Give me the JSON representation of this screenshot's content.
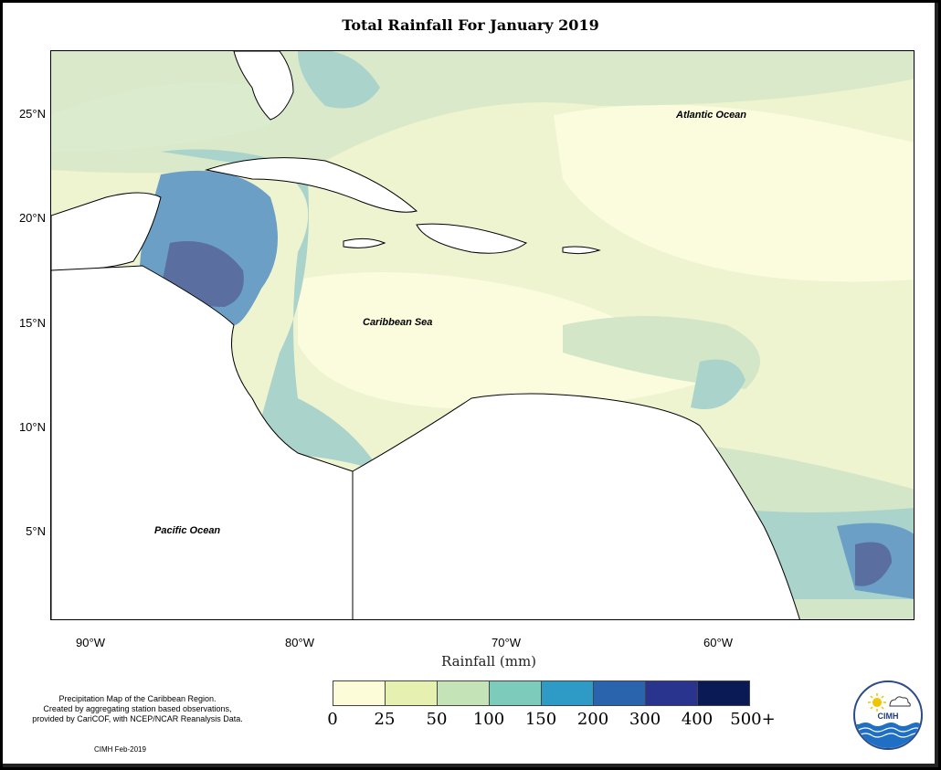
{
  "title": "Total Rainfall For January 2019",
  "axes": {
    "lat_labels": [
      "25°N",
      "20°N",
      "15°N",
      "10°N",
      "5°N"
    ],
    "lon_labels": [
      "90°W",
      "80°W",
      "70°W",
      "60°W"
    ],
    "xlabel": "Rainfall (mm)"
  },
  "ocean_labels": {
    "atlantic": "Atlantic Ocean",
    "caribbean": "Caribbean Sea",
    "pacific": "Pacific Ocean"
  },
  "legend": {
    "breaks": [
      "0",
      "25",
      "50",
      "100",
      "150",
      "200",
      "300",
      "400",
      "500+"
    ],
    "colors": [
      "#fcfdd8",
      "#e6f0b0",
      "#c4e3b7",
      "#7dcbbb",
      "#2e9ac6",
      "#2a64ad",
      "#29348e",
      "#0a1a55"
    ]
  },
  "note": {
    "line1": "Precipitation Map of the Caribbean Region.",
    "line2": "Created by aggregating station based observations,",
    "line3": "provided by CariCOF, with NCEP/NCAR Reanalysis Data."
  },
  "credit": "CIMH Feb-2019",
  "logo": {
    "text": "CIMH",
    "icons": [
      "sun-icon",
      "cloud-icon",
      "waves-icon"
    ]
  },
  "map_colors": {
    "background": "#eef3d0",
    "light": "#fbfcde",
    "green": "#d3e6c8",
    "teal": "#a9d3cb",
    "blue": "#6b9fc6",
    "dark": "#5a6fa0",
    "land": "#ffffff"
  }
}
